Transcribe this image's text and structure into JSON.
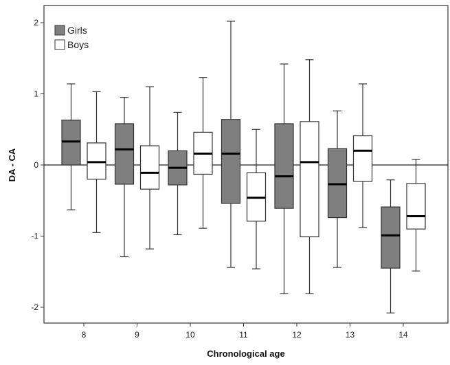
{
  "chart_data": {
    "type": "boxplot",
    "title": "",
    "xlabel": "Chronological age",
    "ylabel": "DA - CA",
    "ylim": [
      -2.2,
      2.2
    ],
    "yticks": [
      "2",
      "1",
      "0",
      "-1",
      "-2"
    ],
    "ytick_values": [
      2,
      1,
      0,
      -1,
      -2
    ],
    "categories": [
      "8",
      "9",
      "10",
      "11",
      "12",
      "13",
      "14"
    ],
    "reference_line": 0,
    "legend_placement": "top-left",
    "grid": false,
    "series": [
      {
        "name": "Girls",
        "color": "#7f7f7f",
        "boxes": [
          {
            "category": "8",
            "min": -0.63,
            "q1": 0.0,
            "median": 0.33,
            "q3": 0.63,
            "max": 1.14
          },
          {
            "category": "9",
            "min": -1.29,
            "q1": -0.27,
            "median": 0.22,
            "q3": 0.58,
            "max": 0.95
          },
          {
            "category": "10",
            "min": -0.98,
            "q1": -0.28,
            "median": -0.04,
            "q3": 0.2,
            "max": 0.74
          },
          {
            "category": "11",
            "min": -1.44,
            "q1": -0.54,
            "median": 0.16,
            "q3": 0.64,
            "max": 2.02
          },
          {
            "category": "12",
            "min": -1.81,
            "q1": -0.61,
            "median": -0.16,
            "q3": 0.58,
            "max": 1.42
          },
          {
            "category": "13",
            "min": -1.44,
            "q1": -0.74,
            "median": -0.27,
            "q3": 0.23,
            "max": 0.76
          },
          {
            "category": "14",
            "min": -2.08,
            "q1": -1.45,
            "median": -0.99,
            "q3": -0.59,
            "max": -0.21
          }
        ]
      },
      {
        "name": "Boys",
        "color": "#ffffff",
        "boxes": [
          {
            "category": "8",
            "min": -0.95,
            "q1": -0.2,
            "median": 0.04,
            "q3": 0.31,
            "max": 1.03
          },
          {
            "category": "9",
            "min": -1.18,
            "q1": -0.34,
            "median": -0.11,
            "q3": 0.27,
            "max": 1.1
          },
          {
            "category": "10",
            "min": -0.89,
            "q1": -0.13,
            "median": 0.16,
            "q3": 0.46,
            "max": 1.23
          },
          {
            "category": "11",
            "min": -1.46,
            "q1": -0.79,
            "median": -0.46,
            "q3": -0.11,
            "max": 0.5
          },
          {
            "category": "12",
            "min": -1.81,
            "q1": -1.01,
            "median": 0.04,
            "q3": 0.61,
            "max": 1.48
          },
          {
            "category": "13",
            "min": -0.88,
            "q1": -0.23,
            "median": 0.2,
            "q3": 0.41,
            "max": 1.14
          },
          {
            "category": "14",
            "min": -1.49,
            "q1": -0.9,
            "median": -0.72,
            "q3": -0.26,
            "max": 0.08
          }
        ]
      }
    ]
  }
}
